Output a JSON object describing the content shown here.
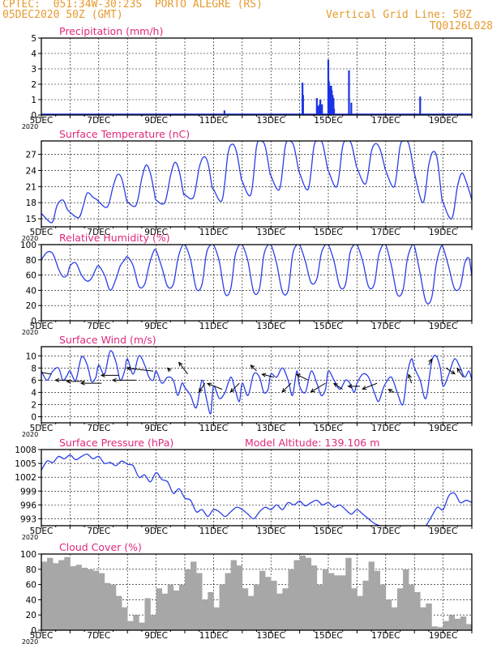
{
  "header": {
    "line1": "CPTEC:  051:34W-30:23S  PORTO ALEGRE (RS)",
    "line2": "05DEC2020 50Z (GMT)",
    "grid_note": "Vertical Grid Line: 50Z",
    "code": "TQ0126L028"
  },
  "colors": {
    "header": "#e69a2e",
    "titles": "#e0287c",
    "line": "#2a3ee8",
    "precip": "#1a33e6",
    "cloud": "#a7a7a7",
    "wind_arrow": "#000000"
  },
  "x_axis": {
    "labels": [
      "5DEC",
      "7DEC",
      "9DEC",
      "11DEC",
      "13DEC",
      "15DEC",
      "17DEC",
      "19DEC"
    ],
    "label_days": [
      0,
      2,
      4,
      6,
      8,
      10,
      12,
      14
    ],
    "year_stub": "2020",
    "range_days": [
      0,
      15
    ]
  },
  "chart_data": [
    {
      "type": "bar",
      "title": "Precipitation (mm/h)",
      "ylim": [
        0,
        5
      ],
      "yticks": [
        0,
        1,
        2,
        3,
        4,
        5
      ],
      "x": [
        6.38,
        9.1,
        9.12,
        9.6,
        9.65,
        9.7,
        9.72,
        9.75,
        9.78,
        10.0,
        10.02,
        10.05,
        10.08,
        10.1,
        10.12,
        10.15,
        10.18,
        10.2,
        10.72,
        10.8,
        13.2
      ],
      "values": [
        0.3,
        2.1,
        1.3,
        1.1,
        0.6,
        0.7,
        1.0,
        0.5,
        0.7,
        3.6,
        2.2,
        1.9,
        1.8,
        1.9,
        1.6,
        1.3,
        1.1,
        0.4,
        2.9,
        0.8,
        1.2
      ]
    },
    {
      "type": "line",
      "title": "Surface Temperature (nC)",
      "ylim": [
        13.5,
        29.5
      ],
      "yticks": [
        15,
        18,
        21,
        24,
        27
      ],
      "x": [
        0,
        0.25,
        0.4,
        0.55,
        0.75,
        0.9,
        1.0,
        1.3,
        1.45,
        1.6,
        1.8,
        1.95,
        2.0,
        2.3,
        2.5,
        2.65,
        2.8,
        2.95,
        3.0,
        3.3,
        3.5,
        3.65,
        3.8,
        3.95,
        4.0,
        4.3,
        4.5,
        4.65,
        4.8,
        4.95,
        5.0,
        5.3,
        5.5,
        5.65,
        5.8,
        5.95,
        6.0,
        6.3,
        6.5,
        6.65,
        6.8,
        6.95,
        7.0,
        7.3,
        7.5,
        7.65,
        7.8,
        7.95,
        8.0,
        8.3,
        8.5,
        8.65,
        8.8,
        8.95,
        9.0,
        9.3,
        9.5,
        9.65,
        9.8,
        9.95,
        10.0,
        10.3,
        10.5,
        10.65,
        10.8,
        10.95,
        11.0,
        11.3,
        11.5,
        11.65,
        11.8,
        11.95,
        12.0,
        12.3,
        12.5,
        12.65,
        12.8,
        12.95,
        13.0,
        13.3,
        13.5,
        13.65,
        13.8,
        13.95,
        14.0,
        14.3,
        14.5,
        14.65,
        14.8,
        14.95,
        15.0
      ],
      "values": [
        16,
        14.6,
        14.5,
        17.5,
        18.5,
        16.8,
        16.2,
        15.2,
        17.2,
        19.8,
        19.0,
        18.5,
        18.2,
        17.2,
        21.0,
        23.2,
        22.5,
        19.0,
        18.2,
        17.5,
        22.5,
        25.0,
        23.5,
        19.5,
        18.5,
        18.0,
        23.0,
        25.5,
        24.0,
        19.8,
        19.5,
        19.0,
        24.5,
        26.5,
        25.5,
        21.0,
        20.5,
        18.5,
        27.0,
        28.9,
        27.5,
        23.0,
        22.0,
        19.5,
        28.5,
        29.5,
        28.5,
        24.0,
        23.0,
        20.5,
        28.5,
        29.5,
        28.5,
        24.5,
        23.5,
        20.5,
        28.5,
        29.5,
        29.0,
        25.0,
        24.0,
        21.0,
        28.5,
        29.5,
        29.0,
        25.5,
        24.5,
        21.5,
        27.5,
        29.0,
        28.0,
        25.0,
        24.0,
        21.0,
        28.5,
        29.5,
        29.0,
        25.0,
        23.5,
        18.0,
        25.0,
        27.5,
        26.0,
        19.0,
        18.0,
        15.0,
        21.0,
        23.5,
        22.0,
        19.5,
        18.5
      ]
    },
    {
      "type": "line",
      "title": "Relative Humidity (%)",
      "ylim": [
        0,
        100
      ],
      "yticks": [
        0,
        20,
        40,
        60,
        80,
        100
      ],
      "x": [
        0,
        0.2,
        0.4,
        0.6,
        0.75,
        0.9,
        1.0,
        1.2,
        1.4,
        1.6,
        1.75,
        1.9,
        2.0,
        2.2,
        2.4,
        2.6,
        2.75,
        2.9,
        3.0,
        3.2,
        3.4,
        3.6,
        3.75,
        3.9,
        4.0,
        4.2,
        4.4,
        4.6,
        4.75,
        4.9,
        5.0,
        5.2,
        5.4,
        5.6,
        5.75,
        5.9,
        6.0,
        6.2,
        6.4,
        6.6,
        6.75,
        6.9,
        7.0,
        7.2,
        7.4,
        7.6,
        7.75,
        7.9,
        8.0,
        8.2,
        8.4,
        8.6,
        8.75,
        8.9,
        9.0,
        9.2,
        9.4,
        9.6,
        9.75,
        9.9,
        10.0,
        10.2,
        10.4,
        10.6,
        10.75,
        10.9,
        11.0,
        11.2,
        11.4,
        11.6,
        11.75,
        11.9,
        12.0,
        12.2,
        12.4,
        12.6,
        12.75,
        12.9,
        13.0,
        13.2,
        13.4,
        13.6,
        13.75,
        13.9,
        14.0,
        14.2,
        14.4,
        14.6,
        14.75,
        14.9,
        15.0
      ],
      "values": [
        80,
        90,
        88,
        68,
        58,
        60,
        72,
        76,
        60,
        52,
        56,
        68,
        72,
        60,
        40,
        55,
        72,
        80,
        84,
        72,
        45,
        48,
        72,
        90,
        92,
        70,
        45,
        48,
        80,
        98,
        100,
        80,
        42,
        48,
        88,
        100,
        100,
        78,
        36,
        42,
        85,
        100,
        100,
        78,
        38,
        42,
        86,
        100,
        100,
        75,
        38,
        40,
        86,
        100,
        100,
        78,
        50,
        55,
        88,
        100,
        100,
        78,
        45,
        48,
        88,
        100,
        100,
        78,
        45,
        48,
        85,
        100,
        100,
        72,
        35,
        40,
        80,
        98,
        98,
        62,
        25,
        30,
        72,
        95,
        96,
        70,
        42,
        45,
        75,
        82,
        58
      ]
    },
    {
      "type": "line",
      "title": "Surface Wind (m/s)",
      "ylim": [
        -1,
        11.5
      ],
      "yticks": [
        0,
        2,
        4,
        6,
        8,
        10
      ],
      "x": [
        0,
        0.2,
        0.4,
        0.6,
        0.75,
        0.9,
        1.0,
        1.2,
        1.4,
        1.6,
        1.75,
        1.9,
        2.0,
        2.2,
        2.4,
        2.6,
        2.75,
        2.9,
        3.0,
        3.2,
        3.4,
        3.6,
        3.75,
        3.9,
        4.0,
        4.2,
        4.4,
        4.6,
        4.75,
        4.9,
        5.0,
        5.2,
        5.4,
        5.6,
        5.75,
        5.9,
        6.0,
        6.2,
        6.4,
        6.6,
        6.75,
        6.9,
        7.0,
        7.2,
        7.4,
        7.6,
        7.75,
        7.9,
        8.0,
        8.2,
        8.4,
        8.6,
        8.75,
        8.9,
        9.0,
        9.2,
        9.4,
        9.6,
        9.75,
        9.9,
        10.0,
        10.2,
        10.4,
        10.6,
        10.75,
        10.9,
        11.0,
        11.2,
        11.4,
        11.6,
        11.75,
        11.9,
        12.0,
        12.2,
        12.4,
        12.6,
        12.75,
        12.9,
        13.0,
        13.2,
        13.4,
        13.6,
        13.75,
        13.9,
        14.0,
        14.2,
        14.4,
        14.6,
        14.75,
        14.9,
        15.0
      ],
      "values": [
        7.5,
        6.0,
        7.5,
        8.0,
        6.0,
        6.8,
        7.5,
        6.0,
        9.8,
        8.5,
        5.8,
        6.5,
        8.5,
        7.0,
        10.8,
        9.0,
        6.0,
        7.5,
        9.5,
        7.0,
        10.0,
        8.5,
        6.5,
        6.0,
        7.5,
        5.5,
        6.5,
        6.0,
        3.5,
        5.5,
        4.8,
        3.5,
        1.5,
        6.0,
        3.0,
        0.5,
        5.0,
        3.0,
        4.0,
        6.5,
        4.5,
        2.5,
        5.5,
        3.5,
        7.0,
        6.5,
        4.0,
        4.5,
        7.0,
        6.5,
        8.0,
        6.0,
        3.5,
        7.5,
        5.0,
        4.0,
        7.5,
        5.5,
        3.5,
        4.5,
        7.5,
        6.0,
        4.5,
        6.0,
        5.5,
        4.0,
        5.5,
        7.0,
        6.5,
        4.0,
        2.5,
        4.5,
        5.5,
        6.5,
        4.0,
        2.0,
        7.0,
        9.5,
        8.0,
        6.0,
        3.0,
        9.0,
        10.0,
        8.0,
        5.0,
        7.0,
        9.5,
        8.0,
        6.5,
        7.5,
        6.0
      ],
      "arrows": {
        "x": [
          0.35,
          0.9,
          1.5,
          2.1,
          2.7,
          3.3,
          3.9,
          4.5,
          5.1,
          5.7,
          6.3,
          6.9,
          7.5,
          8.1,
          8.7,
          9.3,
          9.9,
          10.5,
          11.1,
          11.7,
          12.3,
          12.9,
          13.5,
          14.1,
          14.7
        ],
        "y": [
          7.0,
          6.0,
          5.8,
          5.5,
          6.8,
          6.0,
          7.5,
          7.5,
          7.0,
          5.5,
          4.5,
          5.5,
          7.5,
          6.5,
          5.5,
          6.0,
          5.5,
          4.5,
          5.0,
          5.5,
          4.0,
          5.5,
          8.5,
          8.0,
          6.5
        ],
        "u": [
          -6,
          -4,
          -6,
          -7,
          -6,
          -8,
          -9,
          -1,
          -3,
          -2,
          -5,
          -3,
          -2,
          -4,
          -3,
          -4,
          -5,
          -3,
          -4,
          -5,
          -2,
          -1,
          1,
          3,
          -2
        ],
        "v": [
          1,
          0,
          0,
          0,
          0,
          0,
          1,
          1,
          4,
          -3,
          2,
          -3,
          2,
          1,
          -3,
          2,
          -3,
          2,
          0,
          -2,
          1,
          3,
          2,
          -2,
          3
        ]
      }
    },
    {
      "type": "line",
      "title": "Surface Pressure (hPa)",
      "annotation": "Model Altitude: 139.106 m",
      "ylim": [
        991.5,
        1008
      ],
      "yticks": [
        993,
        996,
        999,
        1002,
        1005,
        1008
      ],
      "x": [
        0,
        0.2,
        0.4,
        0.6,
        0.8,
        1.0,
        1.2,
        1.4,
        1.6,
        1.8,
        2.0,
        2.2,
        2.4,
        2.6,
        2.8,
        3.0,
        3.2,
        3.4,
        3.6,
        3.8,
        4.0,
        4.2,
        4.4,
        4.6,
        4.8,
        5.0,
        5.2,
        5.4,
        5.6,
        5.8,
        6.0,
        6.2,
        6.4,
        6.6,
        6.8,
        7.0,
        7.2,
        7.4,
        7.6,
        7.8,
        8.0,
        8.2,
        8.4,
        8.6,
        8.8,
        9.0,
        9.2,
        9.4,
        9.6,
        9.8,
        10.0,
        10.2,
        10.4,
        10.6,
        10.8,
        11.0,
        11.2,
        11.4,
        11.6,
        11.8,
        12.0,
        12.2,
        12.4,
        12.6,
        12.8,
        13.0,
        13.2,
        13.4,
        13.6,
        13.8,
        14.0,
        14.2,
        14.4,
        14.6,
        14.8,
        15.0
      ],
      "values": [
        1003.5,
        1005.5,
        1005.2,
        1006.5,
        1006.0,
        1006.8,
        1005.8,
        1006.5,
        1007.0,
        1006.0,
        1006.5,
        1005.0,
        1005.2,
        1004.5,
        1005.5,
        1004.8,
        1004.5,
        1002.0,
        1002.5,
        1001.0,
        1003.0,
        1001.5,
        1001.0,
        998.5,
        999.5,
        997.5,
        997.0,
        994.5,
        995.0,
        993.5,
        995.0,
        994.5,
        993.5,
        994.5,
        995.5,
        995.0,
        994.0,
        993.0,
        994.5,
        995.5,
        995.0,
        996.0,
        995.0,
        996.5,
        996.0,
        996.8,
        995.8,
        996.5,
        997.0,
        996.0,
        996.5,
        995.5,
        996.0,
        995.0,
        994.0,
        995.0,
        994.0,
        993.0,
        992.0,
        991.5,
        991.0,
        990.5,
        990.5,
        990.5,
        990.5,
        990.5,
        990.5,
        991.5,
        993.5,
        995.5,
        995.0,
        998.0,
        998.5,
        996.5,
        997.0,
        996.5
      ]
    },
    {
      "type": "bar",
      "title": "Cloud Cover (%)",
      "ylim": [
        0,
        100
      ],
      "yticks": [
        0,
        20,
        40,
        60,
        80,
        100
      ],
      "x": [
        0,
        0.2,
        0.4,
        0.6,
        0.8,
        1.0,
        1.2,
        1.4,
        1.6,
        1.8,
        2.0,
        2.2,
        2.4,
        2.6,
        2.8,
        3.0,
        3.2,
        3.4,
        3.6,
        3.8,
        4.0,
        4.2,
        4.4,
        4.6,
        4.8,
        5.0,
        5.2,
        5.4,
        5.6,
        5.8,
        6.0,
        6.2,
        6.4,
        6.6,
        6.8,
        7.0,
        7.2,
        7.4,
        7.6,
        7.8,
        8.0,
        8.2,
        8.4,
        8.6,
        8.8,
        9.0,
        9.2,
        9.4,
        9.6,
        9.8,
        10.0,
        10.2,
        10.4,
        10.6,
        10.8,
        11.0,
        11.2,
        11.4,
        11.6,
        11.8,
        12.0,
        12.2,
        12.4,
        12.6,
        12.8,
        13.0,
        13.2,
        13.4,
        13.6,
        13.8,
        14.0,
        14.2,
        14.4,
        14.6,
        14.8
      ],
      "values": [
        90,
        95,
        88,
        92,
        96,
        84,
        86,
        82,
        80,
        78,
        75,
        62,
        60,
        45,
        30,
        12,
        20,
        10,
        42,
        20,
        55,
        48,
        60,
        52,
        60,
        80,
        90,
        75,
        40,
        50,
        30,
        60,
        75,
        92,
        85,
        55,
        45,
        60,
        78,
        70,
        65,
        48,
        55,
        80,
        92,
        98,
        95,
        85,
        60,
        80,
        75,
        72,
        72,
        95,
        55,
        45,
        65,
        90,
        78,
        60,
        40,
        30,
        55,
        80,
        60,
        50,
        30,
        35,
        5,
        4,
        12,
        20,
        15,
        18,
        8
      ]
    }
  ]
}
